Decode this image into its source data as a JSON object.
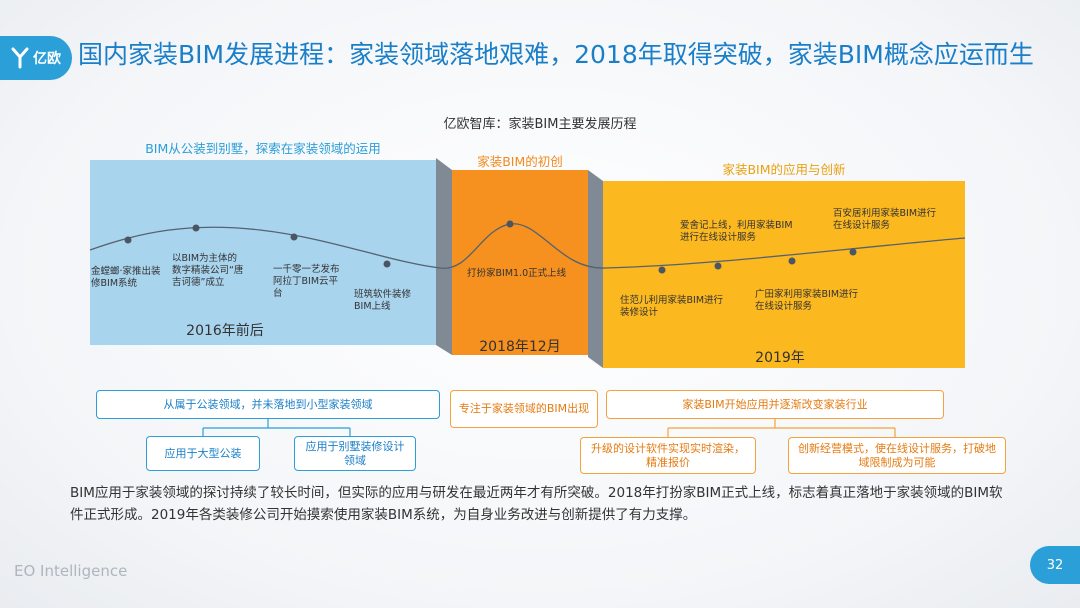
{
  "logo": {
    "text": "亿欧"
  },
  "title": "国内家装BIM发展进程：家装领域落地艰难，2018年取得突破，家装BIM概念应运而生",
  "chart_title": "亿欧智库：家装BIM主要发展历程",
  "phases": [
    {
      "label": "BIM从公装到别墅，探索在家装领域的运用",
      "year": "2016年前后",
      "color": "#a9d4ee"
    },
    {
      "label": "家装BIM的初创",
      "year": "2018年12月",
      "color": "#f6901e"
    },
    {
      "label": "家装BIM的应用与创新",
      "year": "2019年",
      "color": "#fbb81f"
    }
  ],
  "events": [
    "金螳螂·家推出装修BIM系统",
    "以BIM为主体的数字精装公司“唐吉诃德”成立",
    "一千零一艺发布阿拉丁BIM云平台",
    "班筑软件装修BIM上线",
    "打扮家BIM1.0正式上线",
    "住范儿利用家装BIM进行装修设计",
    "爱舍记上线，利用家装BIM进行在线设计服务",
    "广田家利用家装BIM进行在线设计服务",
    "百安居利用家装BIM进行在线设计服务"
  ],
  "boxes": {
    "blue_main": "从属于公装领域，并未落地到小型家装领域",
    "blue_sub1": "应用于大型公装",
    "blue_sub2": "应用于别墅装修设计领域",
    "orange_main": "专注于家装领域的BIM出现",
    "gold_main": "家装BIM开始应用并逐渐改变家装行业",
    "gold_sub1": "升级的设计软件实现实时渲染，精准报价",
    "gold_sub2": "创新经营模式，使在线设计服务，打破地域限制成为可能"
  },
  "summary": "BIM应用于家装领域的探讨持续了较长时间，但实际的应用与研发在最近两年才有所突破。2018年打扮家BIM正式上线，标志着真正落地于家装领域的BIM软件正式形成。2019年各类装修公司开始摸索使用家装BIM系统，为自身业务改进与创新提供了有力支撑。",
  "footer": "EO Intelligence",
  "page_number": "32"
}
